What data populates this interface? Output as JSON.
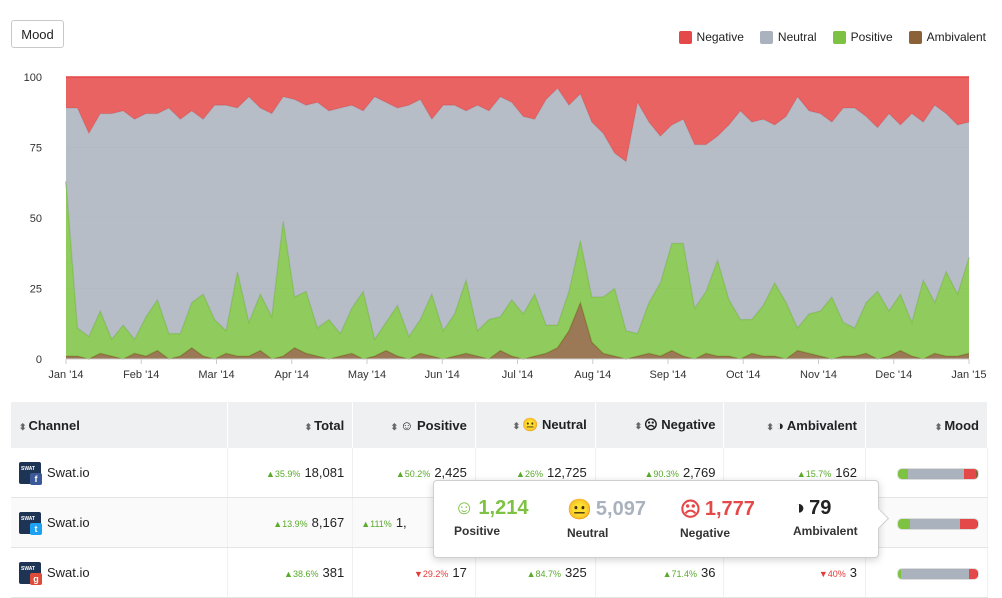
{
  "mood_button": "Mood",
  "legend": [
    {
      "label": "Negative",
      "color": "#e54848"
    },
    {
      "label": "Neutral",
      "color": "#aab2bd"
    },
    {
      "label": "Positive",
      "color": "#7dc242"
    },
    {
      "label": "Ambivalent",
      "color": "#8b6238"
    }
  ],
  "chart_data": {
    "type": "area",
    "stacking": "percent",
    "y_ticks": [
      "100",
      "75",
      "50",
      "25",
      "0"
    ],
    "x_ticks": [
      "Jan '14",
      "Feb '14",
      "Mar '14",
      "Apr '14",
      "May '14",
      "Jun '14",
      "Jul '14",
      "Aug '14",
      "Sep '14",
      "Oct '14",
      "Nov '14",
      "Dec '14",
      "Jan '15"
    ],
    "ylim": [
      0,
      100
    ],
    "series": [
      {
        "name": "Ambivalent",
        "color": "#8b6238",
        "values": [
          1,
          1,
          0,
          2,
          1,
          0,
          2,
          1,
          3,
          0,
          1,
          4,
          1,
          0,
          2,
          1,
          1,
          3,
          0,
          1,
          4,
          2,
          1,
          0,
          1,
          2,
          0,
          1,
          3,
          1,
          0,
          2,
          1,
          0,
          1,
          2,
          1,
          0,
          3,
          1,
          0,
          1,
          2,
          4,
          10,
          20,
          6,
          2,
          1,
          0,
          1,
          2,
          1,
          3,
          1,
          0,
          2,
          1,
          1,
          0,
          2,
          1,
          1,
          0,
          3,
          2,
          1,
          0,
          1,
          1,
          2,
          0,
          1,
          3,
          1,
          0,
          2,
          1,
          1,
          2
        ]
      },
      {
        "name": "Positive",
        "color": "#7dc242",
        "values": [
          62,
          10,
          8,
          15,
          6,
          12,
          5,
          14,
          18,
          9,
          8,
          16,
          22,
          14,
          8,
          30,
          12,
          20,
          15,
          48,
          18,
          22,
          10,
          14,
          8,
          16,
          24,
          6,
          10,
          18,
          8,
          12,
          22,
          10,
          15,
          26,
          9,
          14,
          12,
          20,
          16,
          22,
          10,
          8,
          14,
          22,
          16,
          20,
          24,
          10,
          8,
          18,
          26,
          38,
          40,
          18,
          22,
          34,
          20,
          14,
          12,
          18,
          26,
          20,
          8,
          14,
          16,
          22,
          12,
          10,
          18,
          24,
          16,
          20,
          12,
          28,
          18,
          30,
          22,
          34
        ]
      },
      {
        "name": "Neutral",
        "color": "#aab2bd",
        "values": [
          26,
          78,
          72,
          70,
          80,
          76,
          78,
          72,
          66,
          80,
          76,
          68,
          62,
          76,
          80,
          58,
          80,
          66,
          72,
          44,
          70,
          66,
          80,
          74,
          80,
          72,
          64,
          86,
          78,
          70,
          82,
          78,
          62,
          80,
          74,
          60,
          80,
          74,
          78,
          70,
          70,
          62,
          80,
          84,
          66,
          52,
          62,
          58,
          48,
          60,
          82,
          64,
          52,
          42,
          44,
          58,
          52,
          44,
          62,
          74,
          70,
          66,
          56,
          66,
          82,
          72,
          70,
          62,
          76,
          78,
          66,
          58,
          70,
          60,
          74,
          56,
          70,
          56,
          60,
          48
        ]
      },
      {
        "name": "Negative",
        "color": "#e54848",
        "values": [
          11,
          11,
          20,
          13,
          13,
          12,
          15,
          13,
          13,
          11,
          15,
          12,
          15,
          10,
          10,
          11,
          7,
          11,
          13,
          7,
          8,
          10,
          9,
          12,
          11,
          10,
          12,
          7,
          9,
          11,
          10,
          8,
          15,
          10,
          10,
          12,
          10,
          12,
          7,
          9,
          14,
          15,
          8,
          4,
          10,
          6,
          16,
          20,
          27,
          30,
          9,
          16,
          21,
          17,
          15,
          24,
          24,
          21,
          17,
          12,
          16,
          15,
          17,
          14,
          7,
          12,
          13,
          16,
          11,
          11,
          14,
          18,
          13,
          17,
          13,
          16,
          10,
          13,
          17,
          16
        ]
      }
    ]
  },
  "table": {
    "headers": {
      "channel": "Channel",
      "total": "Total",
      "positive": "Positive",
      "neutral": "Neutral",
      "negative": "Negative",
      "ambivalent": "Ambivalent",
      "mood": "Mood"
    },
    "rows": [
      {
        "network": "facebook",
        "name": "Swat.io",
        "total_chg": "35.9%",
        "total": "18,081",
        "pos_chg": "50.2%",
        "pos": "2,425",
        "neu_chg": "26%",
        "neu": "12,725",
        "neg_chg": "90.3%",
        "neg": "2,769",
        "amb_chg": "15.7%",
        "amb": "162",
        "mood": [
          13,
          70,
          15,
          2
        ]
      },
      {
        "network": "twitter",
        "name": "Swat.io",
        "total_chg": "13.9%",
        "total": "8,167",
        "pos_chg": "111%",
        "pos": "1,",
        "neu_chg": "",
        "neu": "",
        "neg_chg": "",
        "neg": "",
        "amb_chg": "",
        "amb": "",
        "mood": [
          15,
          62,
          22,
          1
        ]
      },
      {
        "network": "google",
        "name": "Swat.io",
        "total_chg": "38.6%",
        "total": "381",
        "pos_chg": "29.2%",
        "pos": "17",
        "neu_chg": "84.7%",
        "neu": "325",
        "neg_chg": "71.4%",
        "neg": "36",
        "amb_chg": "40%",
        "amb": "3",
        "mood": [
          4,
          85,
          10,
          1
        ]
      }
    ]
  },
  "tooltip": {
    "positive": {
      "value": "1,214",
      "label": "Positive",
      "color": "#7dc242"
    },
    "neutral": {
      "value": "5,097",
      "label": "Neutral",
      "color": "#aab2bd"
    },
    "negative": {
      "value": "1,777",
      "label": "Negative",
      "color": "#e54848"
    },
    "ambivalent": {
      "value": "79",
      "label": "Ambivalent",
      "color": "#222222"
    }
  }
}
